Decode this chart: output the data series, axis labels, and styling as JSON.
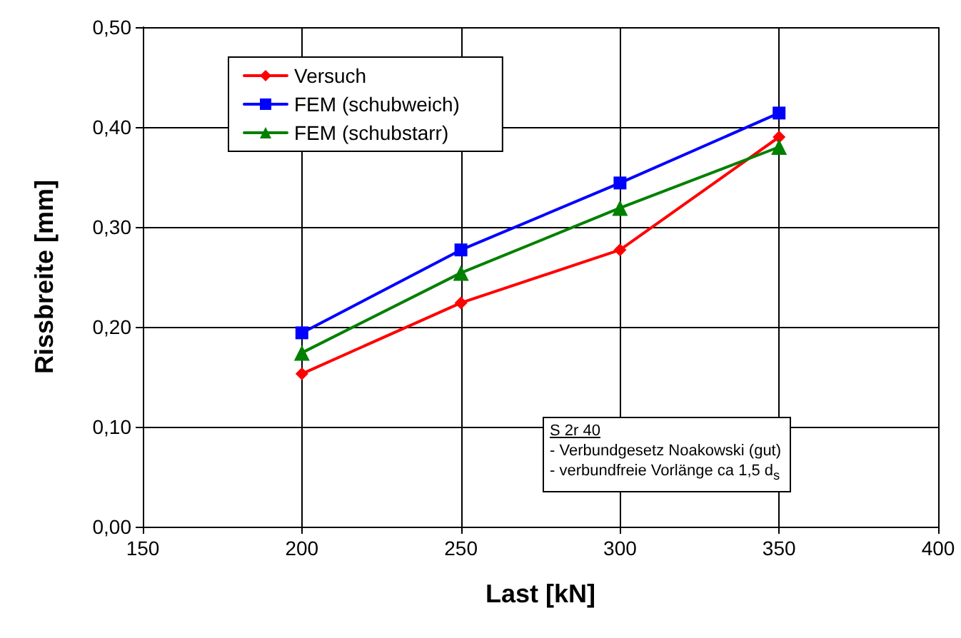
{
  "chart_data": {
    "type": "line",
    "xlabel": "Last [kN]",
    "ylabel": "Rissbreite [mm]",
    "x": [
      200,
      250,
      300,
      350
    ],
    "series": [
      {
        "name": "Versuch",
        "color": "#ff0000",
        "marker": "diamond",
        "values": [
          0.153,
          0.224,
          0.277,
          0.39
        ]
      },
      {
        "name": "FEM (schubweich)",
        "color": "#0000ff",
        "marker": "square",
        "values": [
          0.194,
          0.277,
          0.344,
          0.414
        ]
      },
      {
        "name": "FEM (schubstarr)",
        "color": "#008000",
        "marker": "triangle",
        "values": [
          0.174,
          0.254,
          0.319,
          0.38
        ]
      }
    ],
    "xlim": [
      150,
      400
    ],
    "xticks": [
      150,
      200,
      250,
      300,
      350,
      400
    ],
    "ylim": [
      0,
      0.5
    ],
    "yticks": [
      {
        "value": 0,
        "label": "0,00"
      },
      {
        "value": 0.1,
        "label": "0,10"
      },
      {
        "value": 0.2,
        "label": "0,20"
      },
      {
        "value": 0.3,
        "label": "0,30"
      },
      {
        "value": 0.4,
        "label": "0,40"
      },
      {
        "value": 0.5,
        "label": "0,50"
      }
    ],
    "grid": true,
    "legend": "top left",
    "line_style": "solid",
    "annotations": [
      "S 2r 40",
      "- Verbundgesetz Noakowski (gut)",
      "- verbundfreie Vorlänge ca 1,5 d$_{s}$"
    ]
  }
}
